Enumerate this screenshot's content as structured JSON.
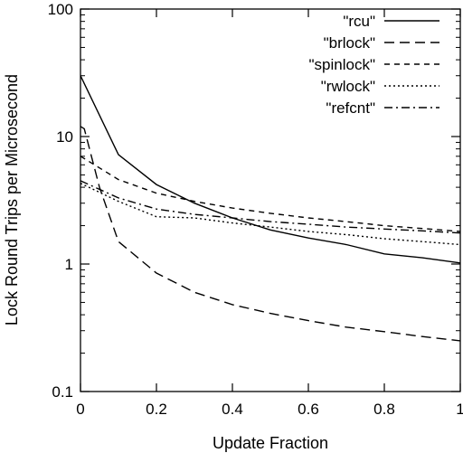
{
  "chart_data": {
    "type": "line",
    "xlabel": "Update Fraction",
    "ylabel": "Lock Round Trips per Microsecond",
    "xlim": [
      0,
      1
    ],
    "ylim": [
      0.1,
      100
    ],
    "yscale": "log",
    "grid": false,
    "legend_position": "top-right",
    "x_ticks": [
      0,
      0.2,
      0.4,
      0.6,
      0.8,
      1
    ],
    "x_tick_labels": [
      "0",
      "0.2",
      "0.4",
      "0.6",
      "0.8",
      "1"
    ],
    "y_ticks": [
      0.1,
      1,
      10,
      100
    ],
    "y_tick_labels": [
      "0.1",
      "1",
      "10",
      "100"
    ],
    "series": [
      {
        "name": "\"rcu\"",
        "dash": "solid",
        "x": [
          0,
          0.1,
          0.2,
          0.3,
          0.4,
          0.5,
          0.6,
          0.7,
          0.8,
          0.9,
          1.0
        ],
        "y": [
          30,
          7.2,
          4.2,
          3.0,
          2.3,
          1.85,
          1.6,
          1.42,
          1.2,
          1.12,
          1.02
        ]
      },
      {
        "name": "\"brlock\"",
        "dash": "long-dash",
        "x": [
          0,
          0.01,
          0.05,
          0.1,
          0.2,
          0.3,
          0.4,
          0.5,
          0.6,
          0.7,
          0.8,
          0.9,
          1.0
        ],
        "y": [
          12,
          11.5,
          4.0,
          1.5,
          0.85,
          0.6,
          0.48,
          0.41,
          0.36,
          0.32,
          0.295,
          0.27,
          0.25
        ]
      },
      {
        "name": "\"spinlock\"",
        "dash": "short-dash",
        "x": [
          0,
          0.1,
          0.2,
          0.3,
          0.4,
          0.5,
          0.6,
          0.7,
          0.8,
          0.9,
          1.0
        ],
        "y": [
          7.0,
          4.6,
          3.6,
          3.1,
          2.75,
          2.5,
          2.3,
          2.15,
          2.0,
          1.9,
          1.8
        ]
      },
      {
        "name": "\"rwlock\"",
        "dash": "dotted",
        "x": [
          0,
          0.1,
          0.2,
          0.3,
          0.4,
          0.5,
          0.6,
          0.7,
          0.8,
          0.9,
          1.0
        ],
        "y": [
          4.3,
          3.1,
          2.35,
          2.3,
          2.1,
          1.95,
          1.8,
          1.7,
          1.58,
          1.5,
          1.42
        ]
      },
      {
        "name": "\"refcnt\"",
        "dash": "dash-dot",
        "x": [
          0,
          0.1,
          0.2,
          0.3,
          0.4,
          0.5,
          0.6,
          0.7,
          0.8,
          0.9,
          1.0
        ],
        "y": [
          4.5,
          3.3,
          2.7,
          2.45,
          2.3,
          2.15,
          2.05,
          1.95,
          1.88,
          1.82,
          1.75
        ]
      }
    ]
  }
}
